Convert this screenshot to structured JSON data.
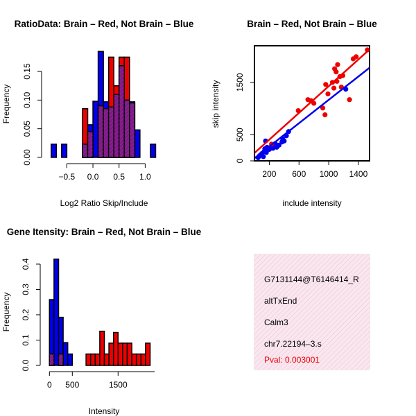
{
  "colors": {
    "red": "#ee0000",
    "blue": "#0000ee",
    "overlap": "#8a1c8f",
    "info_bg": "#f7dcea"
  },
  "chart_data": [
    {
      "id": "ratio_hist",
      "type": "bar",
      "subtype": "overlaid-histogram",
      "title": "RatioData: Brain – Red, Not Brain – Blue",
      "xlabel": "Log2 Ratio Skip/Include",
      "ylabel": "Frequency",
      "xlim": [
        -0.85,
        1.3
      ],
      "ylim": [
        0,
        0.19
      ],
      "xticks": [
        -0.5,
        0.0,
        0.5,
        1.0
      ],
      "xtick_labels": [
        "−0.5",
        "0.0",
        "0.5",
        "1.0"
      ],
      "yticks": [
        0.0,
        0.05,
        0.1,
        0.15
      ],
      "ytick_labels": [
        "0.00",
        "0.05",
        "0.10",
        "0.15"
      ],
      "bin_width": 0.1,
      "series": [
        {
          "name": "Brain",
          "color": "red",
          "bins": [
            [
              -0.2,
              0.085
            ],
            [
              -0.1,
              0.045
            ],
            [
              0.1,
              0.09
            ],
            [
              0.2,
              0.085
            ],
            [
              0.3,
              0.175
            ],
            [
              0.4,
              0.125
            ],
            [
              0.5,
              0.175
            ],
            [
              0.6,
              0.175
            ],
            [
              0.7,
              0.095
            ]
          ]
        },
        {
          "name": "Not Brain",
          "color": "blue",
          "bins": [
            [
              -0.8,
              0.023
            ],
            [
              -0.6,
              0.023
            ],
            [
              -0.2,
              0.023
            ],
            [
              -0.1,
              0.057
            ],
            [
              0.0,
              0.098
            ],
            [
              0.1,
              0.185
            ],
            [
              0.2,
              0.097
            ],
            [
              0.3,
              0.088
            ],
            [
              0.4,
              0.11
            ],
            [
              0.5,
              0.16
            ],
            [
              0.6,
              0.1
            ],
            [
              0.7,
              0.097
            ],
            [
              0.8,
              0.048
            ],
            [
              1.1,
              0.023
            ]
          ]
        }
      ]
    },
    {
      "id": "scatter",
      "type": "scatter",
      "title": "Brain – Red, Not Brain – Blue",
      "xlabel": "include intensity",
      "ylabel": "skip intensity",
      "xlim": [
        0,
        1550
      ],
      "ylim": [
        0,
        2200
      ],
      "xticks": [
        200,
        600,
        1000,
        1400
      ],
      "xtick_labels": [
        "200",
        "600",
        "1000",
        "1400"
      ],
      "yticks": [
        0,
        500,
        1500
      ],
      "ytick_labels": [
        "0",
        "500",
        "1500"
      ],
      "series": [
        {
          "name": "Brain",
          "color": "red",
          "points": [
            [
              230,
              320
            ],
            [
              590,
              960
            ],
            [
              720,
              1170
            ],
            [
              760,
              1150
            ],
            [
              800,
              1100
            ],
            [
              920,
              1010
            ],
            [
              950,
              880
            ],
            [
              960,
              1460
            ],
            [
              990,
              1280
            ],
            [
              1050,
              1500
            ],
            [
              1070,
              1390
            ],
            [
              1080,
              1760
            ],
            [
              1100,
              1700
            ],
            [
              1110,
              1520
            ],
            [
              1120,
              1840
            ],
            [
              1150,
              1610
            ],
            [
              1170,
              1410
            ],
            [
              1190,
              1630
            ],
            [
              1280,
              1170
            ],
            [
              1330,
              1950
            ],
            [
              1370,
              1990
            ],
            [
              1520,
              2120
            ]
          ],
          "fit_line": [
            [
              0,
              150
            ],
            [
              1550,
              2130
            ]
          ]
        },
        {
          "name": "Not Brain",
          "color": "blue",
          "points": [
            [
              50,
              60
            ],
            [
              70,
              100
            ],
            [
              90,
              120
            ],
            [
              100,
              140
            ],
            [
              120,
              80
            ],
            [
              130,
              180
            ],
            [
              140,
              230
            ],
            [
              150,
              200
            ],
            [
              160,
              160
            ],
            [
              170,
              260
            ],
            [
              150,
              380
            ],
            [
              200,
              220
            ],
            [
              220,
              250
            ],
            [
              250,
              240
            ],
            [
              260,
              280
            ],
            [
              280,
              330
            ],
            [
              300,
              260
            ],
            [
              330,
              300
            ],
            [
              370,
              360
            ],
            [
              380,
              420
            ],
            [
              400,
              380
            ],
            [
              430,
              480
            ],
            [
              460,
              560
            ],
            [
              1230,
              1370
            ]
          ],
          "fit_line": [
            [
              0,
              50
            ],
            [
              1550,
              1780
            ]
          ]
        }
      ]
    },
    {
      "id": "intensity_hist",
      "type": "bar",
      "subtype": "overlaid-histogram",
      "title": "Gene Itensity: Brain – Red, Not Brain – Blue",
      "xlabel": "Intensity",
      "ylabel": "Frequency",
      "xlim": [
        -50,
        2450
      ],
      "ylim": [
        0,
        0.43
      ],
      "xticks": [
        0,
        500,
        1500
      ],
      "xtick_labels": [
        "0",
        "500",
        "1500"
      ],
      "yticks": [
        0.0,
        0.1,
        0.2,
        0.3,
        0.4
      ],
      "ytick_labels": [
        "0.0",
        "0.1",
        "0.2",
        "0.3",
        "0.4"
      ],
      "bin_width": 100,
      "series": [
        {
          "name": "Brain",
          "color": "red",
          "bins": [
            [
              0,
              0.045
            ],
            [
              200,
              0.045
            ],
            [
              800,
              0.045
            ],
            [
              900,
              0.045
            ],
            [
              1000,
              0.045
            ],
            [
              1100,
              0.135
            ],
            [
              1200,
              0.045
            ],
            [
              1300,
              0.088
            ],
            [
              1400,
              0.13
            ],
            [
              1500,
              0.088
            ],
            [
              1600,
              0.088
            ],
            [
              1700,
              0.088
            ],
            [
              1800,
              0.045
            ],
            [
              1900,
              0.045
            ],
            [
              2000,
              0.045
            ],
            [
              2100,
              0.088
            ]
          ]
        },
        {
          "name": "Not Brain",
          "color": "blue",
          "bins": [
            [
              0,
              0.26
            ],
            [
              100,
              0.42
            ],
            [
              200,
              0.19
            ],
            [
              300,
              0.09
            ],
            [
              400,
              0.045
            ]
          ]
        }
      ]
    }
  ],
  "info_box": {
    "lines": [
      "G7131144@T6146414_R",
      "altTxEnd",
      "Calm3",
      "chr7.22194–3.s"
    ],
    "pval": "Pval: 0.003001"
  }
}
